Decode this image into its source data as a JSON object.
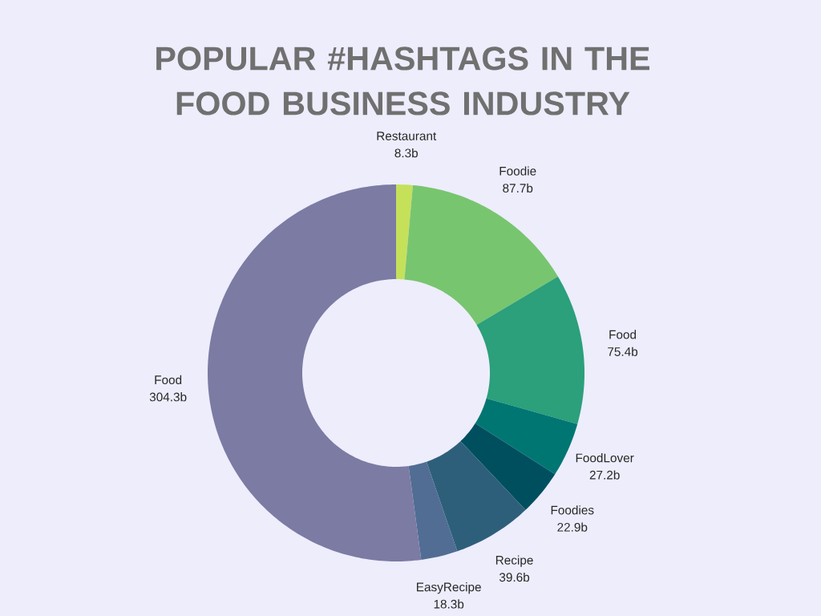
{
  "chart_data": {
    "type": "donut",
    "title": "POPULAR #HASHTAGS IN THE FOOD BUSINESS INDUSTRY",
    "categories": [
      "Restaurant",
      "Foodie",
      "Food",
      "FoodLover",
      "Foodies",
      "Recipe",
      "EasyRecipe",
      "Food"
    ],
    "values": [
      8.3,
      87.7,
      75.4,
      27.2,
      22.9,
      39.6,
      18.3,
      304.3
    ],
    "value_labels": [
      "8.3b",
      "87.7b",
      "75.4b",
      "27.2b",
      "22.9b",
      "39.6b",
      "18.3b",
      "304.3b"
    ],
    "colors": [
      "#c5e15a",
      "#78c56f",
      "#2ba07a",
      "#007672",
      "#004f5f",
      "#2e5f7a",
      "#516d93",
      "#7b7ba3"
    ]
  }
}
